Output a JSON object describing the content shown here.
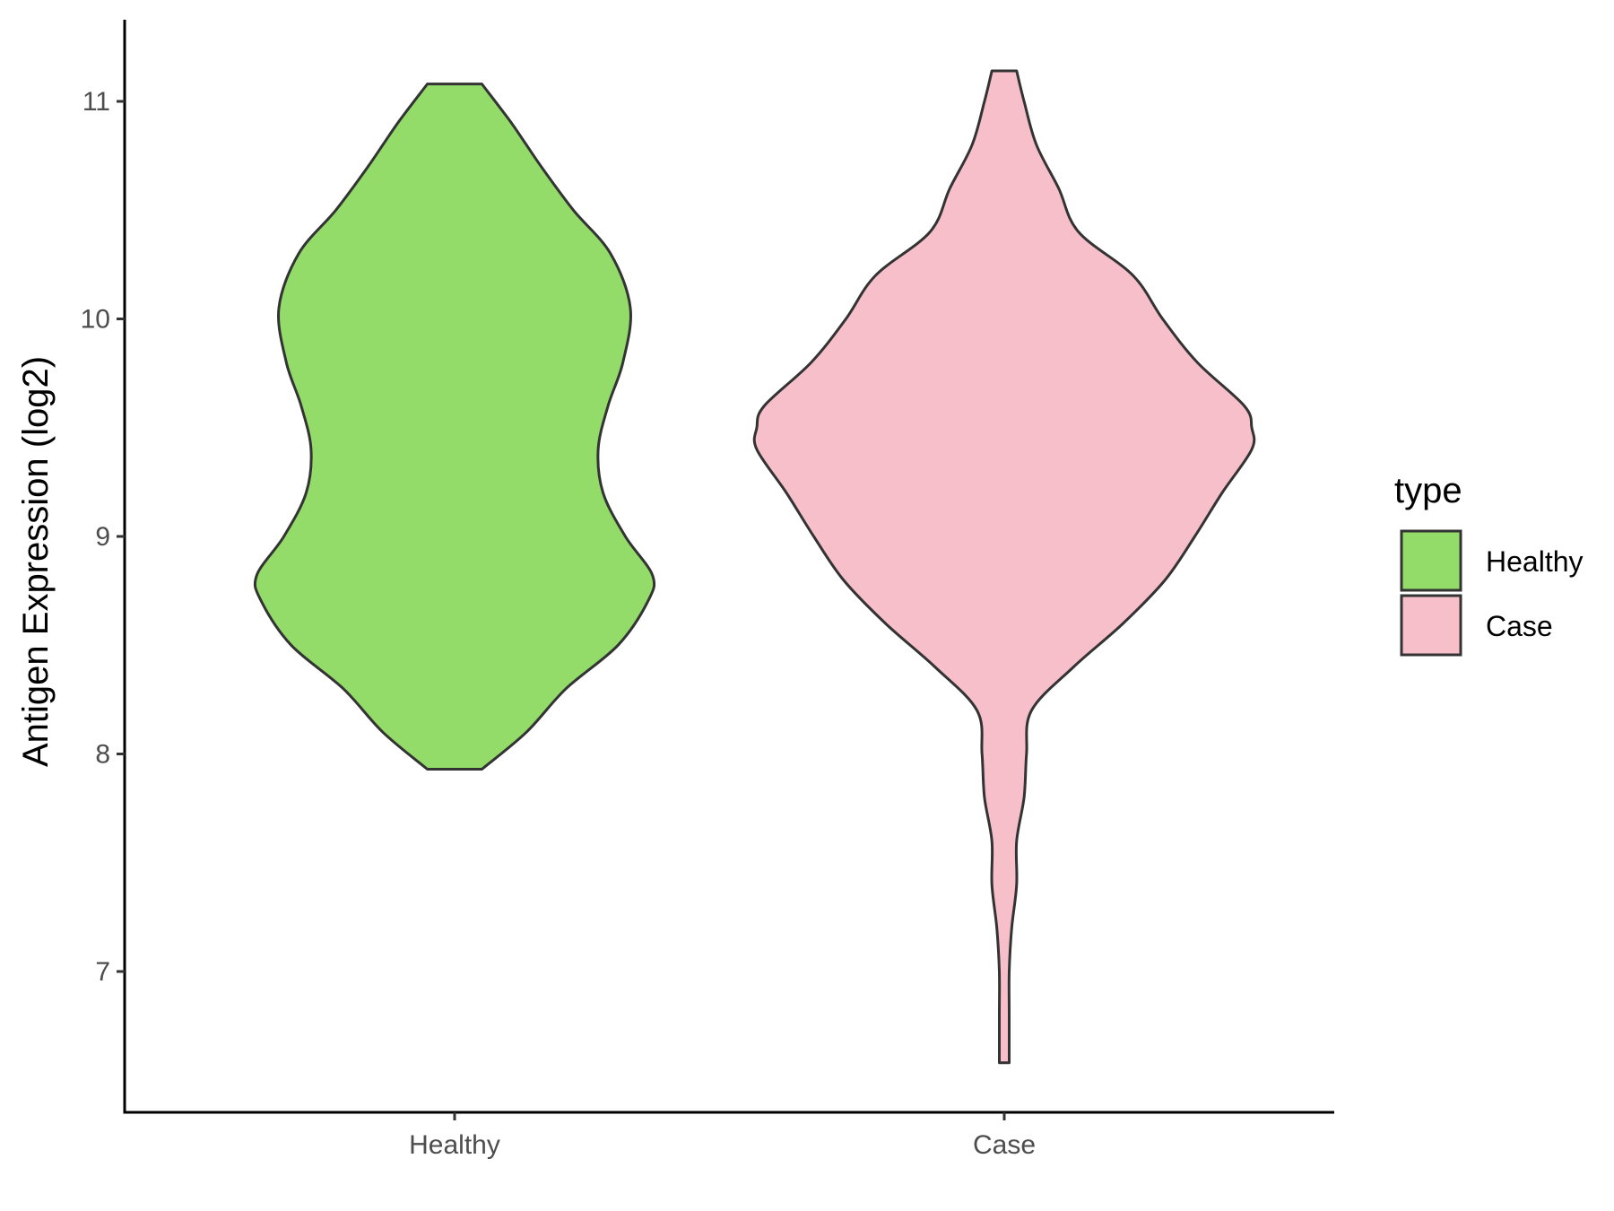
{
  "chart_data": {
    "type": "violin",
    "title": "",
    "xlabel": "",
    "ylabel": "Antigen Expression (log2)",
    "ylim": [
      6.35,
      11.4
    ],
    "yticks": [
      7,
      8,
      9,
      10,
      11
    ],
    "categories": [
      "Healthy",
      "Case"
    ],
    "series": [
      {
        "name": "Healthy",
        "color": "#93dc6a",
        "min": 7.93,
        "max": 11.08,
        "density": [
          [
            7.93,
            0.11
          ],
          [
            8.1,
            0.29
          ],
          [
            8.3,
            0.45
          ],
          [
            8.5,
            0.66
          ],
          [
            8.7,
            0.78
          ],
          [
            8.82,
            0.8
          ],
          [
            9.0,
            0.69
          ],
          [
            9.2,
            0.6
          ],
          [
            9.4,
            0.58
          ],
          [
            9.6,
            0.62
          ],
          [
            9.8,
            0.68
          ],
          [
            10.05,
            0.71
          ],
          [
            10.3,
            0.63
          ],
          [
            10.5,
            0.48
          ],
          [
            10.7,
            0.35
          ],
          [
            10.9,
            0.23
          ],
          [
            11.08,
            0.11
          ]
        ]
      },
      {
        "name": "Case",
        "color": "#f7bfca",
        "min": 6.58,
        "max": 11.14,
        "density": [
          [
            6.58,
            0.02
          ],
          [
            6.8,
            0.02
          ],
          [
            7.0,
            0.02
          ],
          [
            7.2,
            0.03
          ],
          [
            7.4,
            0.05
          ],
          [
            7.6,
            0.05
          ],
          [
            7.8,
            0.08
          ],
          [
            8.0,
            0.09
          ],
          [
            8.2,
            0.11
          ],
          [
            8.4,
            0.28
          ],
          [
            8.6,
            0.48
          ],
          [
            8.8,
            0.65
          ],
          [
            9.0,
            0.77
          ],
          [
            9.2,
            0.88
          ],
          [
            9.4,
            1.0
          ],
          [
            9.5,
            1.0
          ],
          [
            9.6,
            0.97
          ],
          [
            9.8,
            0.78
          ],
          [
            10.0,
            0.64
          ],
          [
            10.2,
            0.52
          ],
          [
            10.4,
            0.3
          ],
          [
            10.6,
            0.22
          ],
          [
            10.8,
            0.13
          ],
          [
            11.0,
            0.08
          ],
          [
            11.14,
            0.05
          ]
        ]
      }
    ],
    "legend": {
      "title": "type",
      "position": "right",
      "items": [
        {
          "label": "Healthy",
          "color": "#93dc6a"
        },
        {
          "label": "Case",
          "color": "#f7bfca"
        }
      ]
    },
    "grid": false
  }
}
